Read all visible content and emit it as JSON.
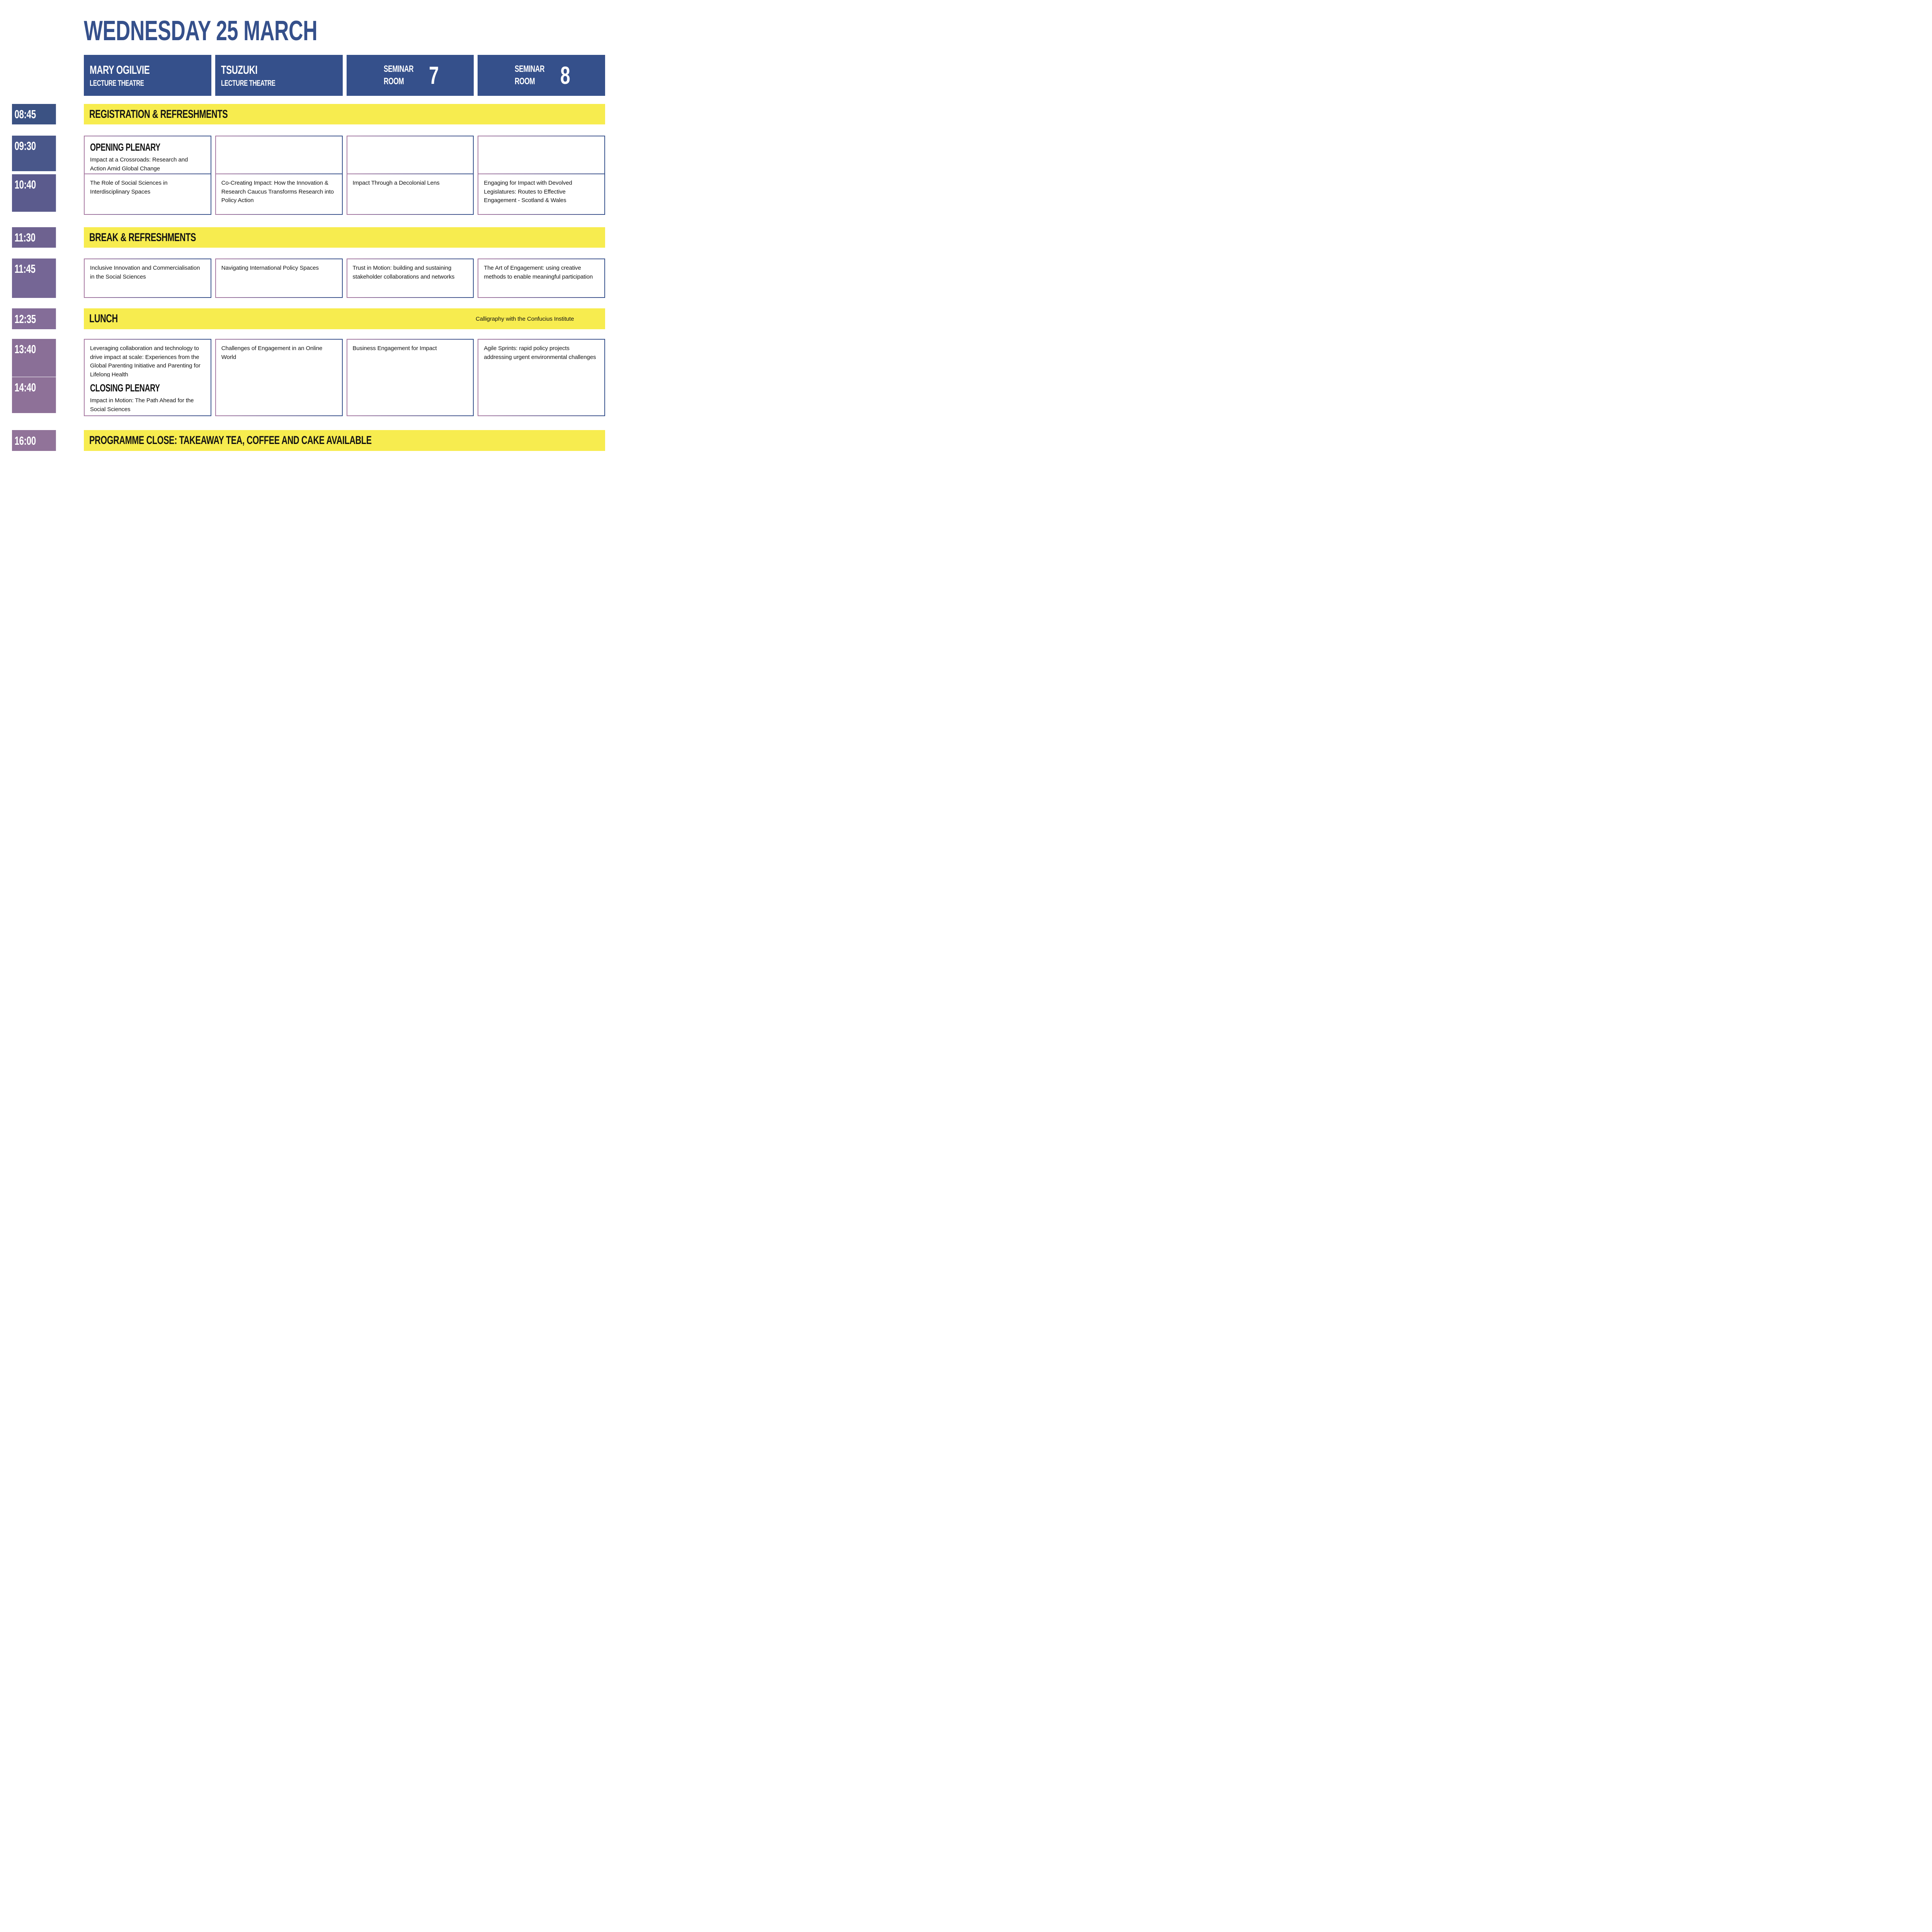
{
  "page": {
    "title": "WEDNESDAY 25 MARCH"
  },
  "palette": {
    "header_blue": "#35508b",
    "banner_yellow": "#f7ec4f",
    "border_gradient_left": "#a87aa2",
    "border_gradient_right": "#35508b",
    "time_gradient_top": "#3b5283",
    "time_gradient_bottom": "#917399",
    "text_dark": "#141414",
    "white": "#ffffff"
  },
  "columns": [
    {
      "name": "MARY OGILVIE",
      "subname": "LECTURE THEATRE"
    },
    {
      "name": "TSUZUKI",
      "subname": "LECTURE THEATRE"
    },
    {
      "name": "SEMINAR",
      "subname": "ROOM",
      "number": "7"
    },
    {
      "name": "SEMINAR",
      "subname": "ROOM",
      "number": "8"
    }
  ],
  "rows": [
    {
      "time": "08:45",
      "type": "banner",
      "color": "#3b5283",
      "label": "REGISTRATION & REFRESHMENTS"
    },
    {
      "time": "09:30",
      "type": "sessions",
      "color": "#49578a",
      "merge": "first",
      "cells": [
        {
          "heading": "OPENING PLENARY",
          "body": "Impact at a Crossroads: Research and Action Amid Global Change"
        },
        {},
        {},
        {}
      ]
    },
    {
      "time": "10:40",
      "type": "sessions",
      "color": "#5b5b8d",
      "merge": "second",
      "cells": [
        {
          "body": "The Role of Social Sciences in Interdisciplinary Spaces"
        },
        {
          "body": "Co-Creating Impact: How the Innovation & Research Caucus Transforms Research into Policy Action"
        },
        {
          "body": "Impact Through a Decolonial Lens"
        },
        {
          "body": "Engaging for Impact with Devolved Legislatures: Routes to Effective Engagement - Scotland & Wales"
        }
      ]
    },
    {
      "time": "11:30",
      "type": "banner",
      "color": "#6e6290",
      "label": "BREAK & REFRESHMENTS"
    },
    {
      "time": "11:45",
      "type": "sessions",
      "color": "#756695",
      "cells": [
        {
          "body": "Inclusive Innovation and Commercialisation in the Social Sciences"
        },
        {
          "body": "Navigating International Policy Spaces"
        },
        {
          "body": "Trust in Motion: building and sustaining stakeholder collaborations and networks"
        },
        {
          "body": "The Art of Engagement: using creative methods to enable meaningful participation"
        }
      ]
    },
    {
      "time": "12:35",
      "type": "banner",
      "color": "#846d98",
      "label": "LUNCH",
      "note": "Calligraphy with the Confucius Institute"
    },
    {
      "time": "13:40",
      "type": "sessions",
      "color": "#8a6f97",
      "merge": "first",
      "cells": [
        {
          "body": "Leveraging collaboration and technology to drive impact at scale: Experiences from the Global Parenting Initiative and Parenting for Lifelong Health"
        },
        {
          "body": "Challenges of Engagement in an Online World"
        },
        {
          "body": "Business Engagement for Impact"
        },
        {
          "body": "Agile Sprints: rapid policy projects addressing urgent environmental challenges"
        }
      ]
    },
    {
      "time": "14:40",
      "type": "sessions",
      "color": "#8e7198",
      "merge": "second",
      "cells": [
        {
          "heading": "CLOSING PLENARY",
          "body": "Impact in Motion: The Path Ahead for the Social Sciences"
        },
        {},
        {},
        {}
      ]
    },
    {
      "time": "16:00",
      "type": "banner",
      "color": "#917399",
      "label": "PROGRAMME CLOSE: TAKEAWAY TEA, COFFEE AND CAKE AVAILABLE"
    }
  ]
}
